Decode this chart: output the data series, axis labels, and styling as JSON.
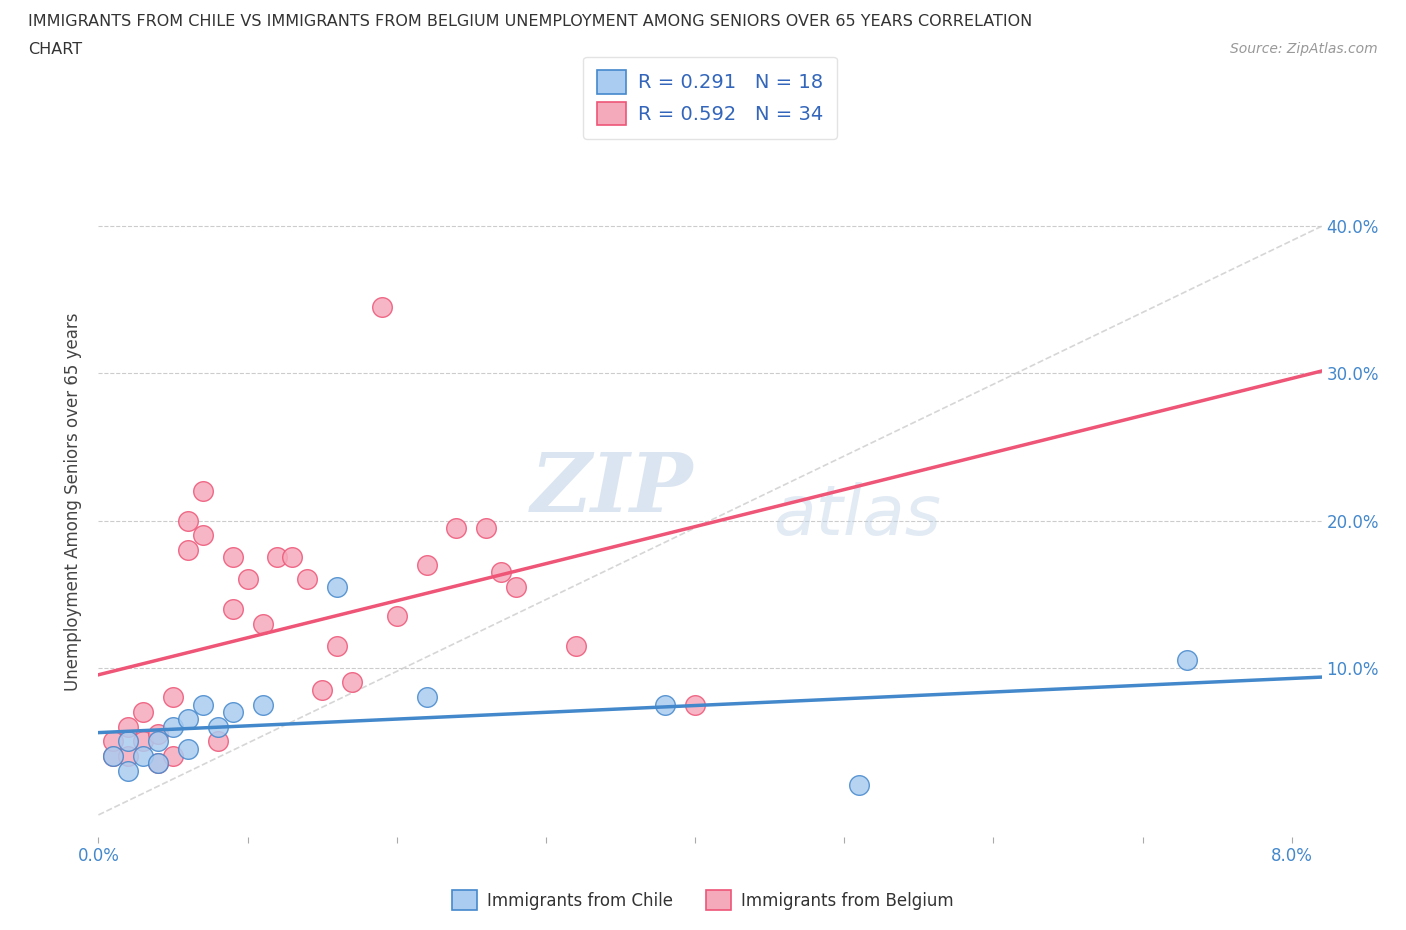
{
  "title_line1": "IMMIGRANTS FROM CHILE VS IMMIGRANTS FROM BELGIUM UNEMPLOYMENT AMONG SENIORS OVER 65 YEARS CORRELATION",
  "title_line2": "CHART",
  "source": "Source: ZipAtlas.com",
  "ylabel": "Unemployment Among Seniors over 65 years",
  "xlim": [
    0.0,
    0.082
  ],
  "ylim": [
    -0.015,
    0.44
  ],
  "r_chile": 0.291,
  "n_chile": 18,
  "r_belgium": 0.592,
  "n_belgium": 34,
  "chile_color": "#aaccf0",
  "belgium_color": "#f5aabb",
  "chile_line_color": "#4488cc",
  "belgium_line_color": "#ee5577",
  "diag_color": "#cccccc",
  "watermark_zip": "ZIP",
  "watermark_atlas": "atlas",
  "chile_x": [
    0.001,
    0.002,
    0.002,
    0.003,
    0.004,
    0.004,
    0.005,
    0.006,
    0.006,
    0.007,
    0.008,
    0.009,
    0.011,
    0.016,
    0.022,
    0.038,
    0.051,
    0.073
  ],
  "chile_y": [
    0.04,
    0.05,
    0.03,
    0.04,
    0.05,
    0.035,
    0.06,
    0.045,
    0.065,
    0.075,
    0.06,
    0.07,
    0.075,
    0.155,
    0.08,
    0.075,
    0.02,
    0.105
  ],
  "belgium_x": [
    0.001,
    0.001,
    0.002,
    0.002,
    0.003,
    0.003,
    0.004,
    0.004,
    0.005,
    0.005,
    0.006,
    0.006,
    0.007,
    0.007,
    0.008,
    0.009,
    0.009,
    0.01,
    0.011,
    0.012,
    0.013,
    0.014,
    0.015,
    0.016,
    0.017,
    0.019,
    0.02,
    0.022,
    0.024,
    0.026,
    0.027,
    0.028,
    0.032,
    0.04
  ],
  "belgium_y": [
    0.04,
    0.05,
    0.04,
    0.06,
    0.05,
    0.07,
    0.055,
    0.035,
    0.08,
    0.04,
    0.18,
    0.2,
    0.19,
    0.22,
    0.05,
    0.175,
    0.14,
    0.16,
    0.13,
    0.175,
    0.175,
    0.16,
    0.085,
    0.115,
    0.09,
    0.345,
    0.135,
    0.17,
    0.195,
    0.195,
    0.165,
    0.155,
    0.115,
    0.075
  ],
  "x_tick_positions": [
    0.0,
    0.01,
    0.02,
    0.03,
    0.04,
    0.05,
    0.06,
    0.07,
    0.08
  ],
  "x_tick_labels": [
    "0.0%",
    "",
    "",
    "",
    "",
    "",
    "",
    "",
    "8.0%"
  ],
  "y_tick_positions": [
    0.0,
    0.1,
    0.2,
    0.3,
    0.4
  ],
  "y_tick_labels_right": [
    "",
    "10.0%",
    "20.0%",
    "30.0%",
    "40.0%"
  ]
}
